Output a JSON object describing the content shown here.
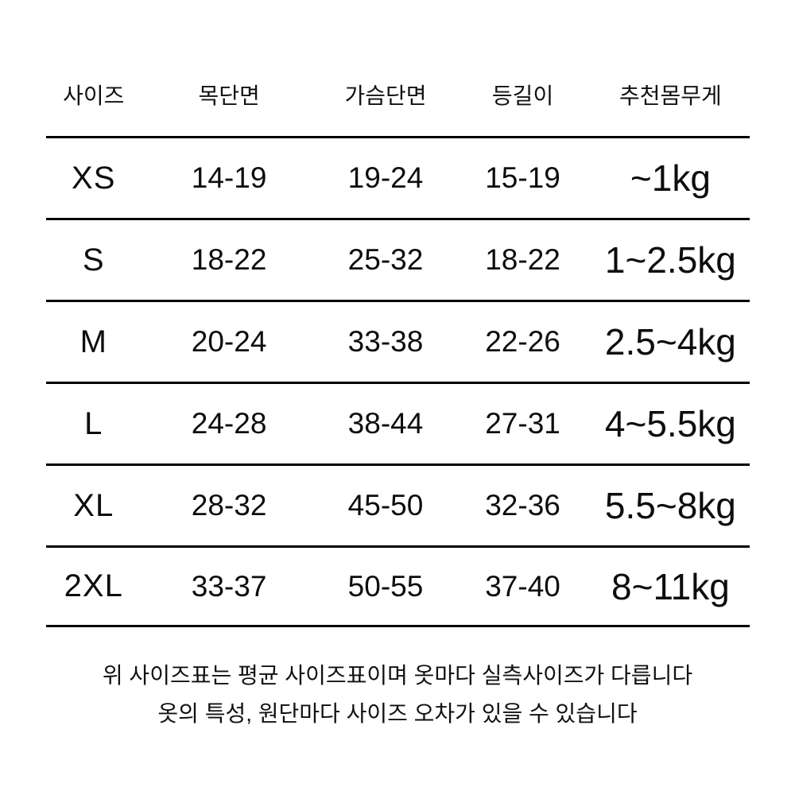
{
  "chart_data": {
    "type": "table",
    "title": "",
    "columns": [
      "사이즈",
      "목단면",
      "가슴단면",
      "등길이",
      "추천몸무게"
    ],
    "rows": [
      [
        "XS",
        "14-19",
        "19-24",
        "15-19",
        "~1kg"
      ],
      [
        "S",
        "18-22",
        "25-32",
        "18-22",
        "1~2.5kg"
      ],
      [
        "M",
        "20-24",
        "33-38",
        "22-26",
        "2.5~4kg"
      ],
      [
        "L",
        "24-28",
        "38-44",
        "27-31",
        "4~5.5kg"
      ],
      [
        "XL",
        "28-32",
        "45-50",
        "32-36",
        "5.5~8kg"
      ],
      [
        "2XL",
        "33-37",
        "50-55",
        "37-40",
        "8~11kg"
      ]
    ],
    "layout": {
      "grid": "horizontal-rules-only",
      "rule_color": "#000000",
      "background": "#ffffff"
    }
  },
  "footer": {
    "line1": "위 사이즈표는 평균 사이즈표이며 옷마다 실측사이즈가 다릅니다",
    "line2": "옷의 특성, 원단마다 사이즈 오차가 있을 수 있습니다"
  },
  "colors": {
    "text": "#0d0d0d",
    "line": "#000000",
    "background": "#ffffff"
  }
}
